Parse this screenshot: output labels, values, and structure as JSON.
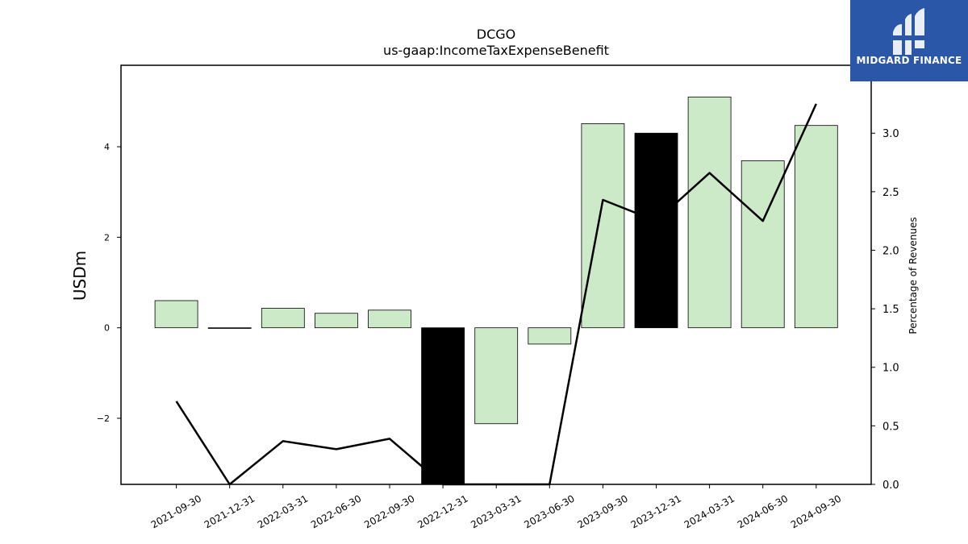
{
  "logo": {
    "text": "MIDGARD FINANCE",
    "background": "#2a57a8"
  },
  "chart_data": {
    "type": "bar",
    "title": "DCGO",
    "subtitle": "us-gaap:IncomeTaxExpenseBenefit",
    "ylabel": "USDm",
    "y2label": "Percentage of Revenues",
    "categories": [
      "2021-09-30",
      "2021-12-31",
      "2022-03-31",
      "2022-06-30",
      "2022-09-30",
      "2022-12-31",
      "2023-03-31",
      "2023-06-30",
      "2023-09-30",
      "2023-12-31",
      "2024-03-31",
      "2024-06-30",
      "2024-09-30"
    ],
    "ylim": [
      -3.46,
      5.8
    ],
    "y2lim": [
      0.0,
      3.58
    ],
    "yticks": [
      -2,
      0,
      2,
      4
    ],
    "ytick_labels": [
      "−2",
      "0",
      "2",
      "4"
    ],
    "y2ticks": [
      0.0,
      0.5,
      1.0,
      1.5,
      2.0,
      2.5,
      3.0
    ],
    "y2tick_labels": [
      "0.0",
      "0.5",
      "1.0",
      "1.5",
      "2.0",
      "2.5",
      "3.0"
    ],
    "series": [
      {
        "type": "bar",
        "axis": "left",
        "values": [
          0.6,
          -0.01,
          0.43,
          0.32,
          0.39,
          -3.46,
          -2.12,
          -0.36,
          4.51,
          4.3,
          5.1,
          3.69,
          4.47
        ],
        "colors": [
          "#cdeac8",
          "#cdeac8",
          "#cdeac8",
          "#cdeac8",
          "#cdeac8",
          "#000000",
          "#cdeac8",
          "#cdeac8",
          "#cdeac8",
          "#000000",
          "#cdeac8",
          "#cdeac8",
          "#cdeac8"
        ]
      },
      {
        "type": "line",
        "axis": "right",
        "values": [
          0.71,
          0.0,
          0.37,
          0.3,
          0.39,
          0.0,
          0.0,
          0.0,
          2.43,
          2.25,
          2.66,
          2.25,
          3.25
        ],
        "color": "#000000"
      }
    ],
    "grid": false,
    "legend": "none"
  }
}
